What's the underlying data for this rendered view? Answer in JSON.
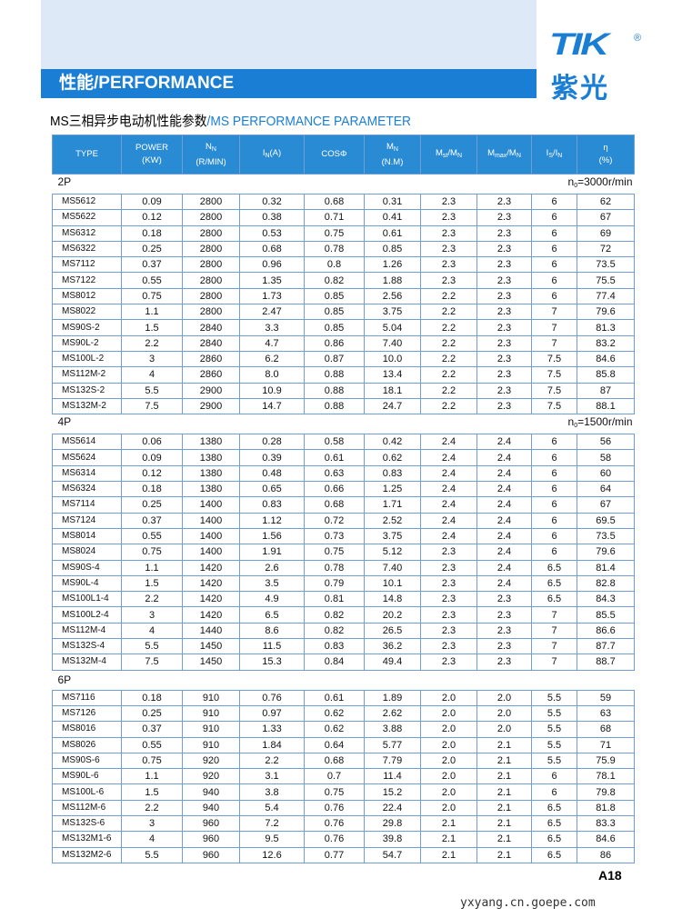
{
  "top_bar": {
    "title": "性能/PERFORMANCE"
  },
  "logo": {
    "mark": "TIK",
    "reg": "®",
    "name": "紫光"
  },
  "subtitle": {
    "cn": "MS三相异步电动机性能参数",
    "en": "/MS PERFORMANCE PARAMETER"
  },
  "table": {
    "header": [
      {
        "top": [
          "TYPE"
        ]
      },
      {
        "top": [
          "POWER"
        ],
        "bottom": "(KW)"
      },
      {
        "top": [
          "N",
          {
            "sub": "N"
          }
        ],
        "bottom": "(R/MIN)"
      },
      {
        "top": [
          "I",
          {
            "sub": "N"
          },
          "(A)"
        ]
      },
      {
        "top": [
          "COSΦ"
        ]
      },
      {
        "top": [
          "M",
          {
            "sub": "N"
          }
        ],
        "bottom": "(N.M)"
      },
      {
        "top": [
          "M",
          {
            "sub": "st"
          },
          "/M",
          {
            "sub": "N"
          }
        ]
      },
      {
        "top": [
          "M",
          {
            "sub": "max"
          },
          "/M",
          {
            "sub": "N"
          }
        ]
      },
      {
        "top": [
          "I",
          {
            "sub": "S"
          },
          "/I",
          {
            "sub": "N"
          }
        ]
      },
      {
        "top": [
          "η"
        ],
        "bottom": "(%)"
      }
    ],
    "sections": [
      {
        "label": "2P",
        "speed": [
          "n",
          {
            "sub": "0"
          },
          "=3000r/min"
        ],
        "rows": [
          [
            "MS5612",
            "0.09",
            "2800",
            "0.32",
            "0.68",
            "0.31",
            "2.3",
            "2.3",
            "6",
            "62"
          ],
          [
            "MS5622",
            "0.12",
            "2800",
            "0.38",
            "0.71",
            "0.41",
            "2.3",
            "2.3",
            "6",
            "67"
          ],
          [
            "MS6312",
            "0.18",
            "2800",
            "0.53",
            "0.75",
            "0.61",
            "2.3",
            "2.3",
            "6",
            "69"
          ],
          [
            "MS6322",
            "0.25",
            "2800",
            "0.68",
            "0.78",
            "0.85",
            "2.3",
            "2.3",
            "6",
            "72"
          ],
          [
            "MS7112",
            "0.37",
            "2800",
            "0.96",
            "0.8",
            "1.26",
            "2.3",
            "2.3",
            "6",
            "73.5"
          ],
          [
            "MS7122",
            "0.55",
            "2800",
            "1.35",
            "0.82",
            "1.88",
            "2.3",
            "2.3",
            "6",
            "75.5"
          ],
          [
            "MS8012",
            "0.75",
            "2800",
            "1.73",
            "0.85",
            "2.56",
            "2.2",
            "2.3",
            "6",
            "77.4"
          ],
          [
            "MS8022",
            "1.1",
            "2800",
            "2.47",
            "0.85",
            "3.75",
            "2.2",
            "2.3",
            "7",
            "79.6"
          ],
          [
            "MS90S-2",
            "1.5",
            "2840",
            "3.3",
            "0.85",
            "5.04",
            "2.2",
            "2.3",
            "7",
            "81.3"
          ],
          [
            "MS90L-2",
            "2.2",
            "2840",
            "4.7",
            "0.86",
            "7.40",
            "2.2",
            "2.3",
            "7",
            "83.2"
          ],
          [
            "MS100L-2",
            "3",
            "2860",
            "6.2",
            "0.87",
            "10.0",
            "2.2",
            "2.3",
            "7.5",
            "84.6"
          ],
          [
            "MS112M-2",
            "4",
            "2860",
            "8.0",
            "0.88",
            "13.4",
            "2.2",
            "2.3",
            "7.5",
            "85.8"
          ],
          [
            "MS132S-2",
            "5.5",
            "2900",
            "10.9",
            "0.88",
            "18.1",
            "2.2",
            "2.3",
            "7.5",
            "87"
          ],
          [
            "MS132M-2",
            "7.5",
            "2900",
            "14.7",
            "0.88",
            "24.7",
            "2.2",
            "2.3",
            "7.5",
            "88.1"
          ]
        ]
      },
      {
        "label": "4P",
        "speed": [
          "n",
          {
            "sub": "0"
          },
          "=1500r/min"
        ],
        "rows": [
          [
            "MS5614",
            "0.06",
            "1380",
            "0.28",
            "0.58",
            "0.42",
            "2.4",
            "2.4",
            "6",
            "56"
          ],
          [
            "MS5624",
            "0.09",
            "1380",
            "0.39",
            "0.61",
            "0.62",
            "2.4",
            "2.4",
            "6",
            "58"
          ],
          [
            "MS6314",
            "0.12",
            "1380",
            "0.48",
            "0.63",
            "0.83",
            "2.4",
            "2.4",
            "6",
            "60"
          ],
          [
            "MS6324",
            "0.18",
            "1380",
            "0.65",
            "0.66",
            "1.25",
            "2.4",
            "2.4",
            "6",
            "64"
          ],
          [
            "MS7114",
            "0.25",
            "1400",
            "0.83",
            "0.68",
            "1.71",
            "2.4",
            "2.4",
            "6",
            "67"
          ],
          [
            "MS7124",
            "0.37",
            "1400",
            "1.12",
            "0.72",
            "2.52",
            "2.4",
            "2.4",
            "6",
            "69.5"
          ],
          [
            "MS8014",
            "0.55",
            "1400",
            "1.56",
            "0.73",
            "3.75",
            "2.4",
            "2.4",
            "6",
            "73.5"
          ],
          [
            "MS8024",
            "0.75",
            "1400",
            "1.91",
            "0.75",
            "5.12",
            "2.3",
            "2.4",
            "6",
            "79.6"
          ],
          [
            "MS90S-4",
            "1.1",
            "1420",
            "2.6",
            "0.78",
            "7.40",
            "2.3",
            "2.4",
            "6.5",
            "81.4"
          ],
          [
            "MS90L-4",
            "1.5",
            "1420",
            "3.5",
            "0.79",
            "10.1",
            "2.3",
            "2.4",
            "6.5",
            "82.8"
          ],
          [
            "MS100L1-4",
            "2.2",
            "1420",
            "4.9",
            "0.81",
            "14.8",
            "2.3",
            "2.3",
            "6.5",
            "84.3"
          ],
          [
            "MS100L2-4",
            "3",
            "1420",
            "6.5",
            "0.82",
            "20.2",
            "2.3",
            "2.3",
            "7",
            "85.5"
          ],
          [
            "MS112M-4",
            "4",
            "1440",
            "8.6",
            "0.82",
            "26.5",
            "2.3",
            "2.3",
            "7",
            "86.6"
          ],
          [
            "MS132S-4",
            "5.5",
            "1450",
            "11.5",
            "0.83",
            "36.2",
            "2.3",
            "2.3",
            "7",
            "87.7"
          ],
          [
            "MS132M-4",
            "7.5",
            "1450",
            "15.3",
            "0.84",
            "49.4",
            "2.3",
            "2.3",
            "7",
            "88.7"
          ]
        ]
      },
      {
        "label": "6P",
        "rows": [
          [
            "MS7116",
            "0.18",
            "910",
            "0.76",
            "0.61",
            "1.89",
            "2.0",
            "2.0",
            "5.5",
            "59"
          ],
          [
            "MS7126",
            "0.25",
            "910",
            "0.97",
            "0.62",
            "2.62",
            "2.0",
            "2.0",
            "5.5",
            "63"
          ],
          [
            "MS8016",
            "0.37",
            "910",
            "1.33",
            "0.62",
            "3.88",
            "2.0",
            "2.0",
            "5.5",
            "68"
          ],
          [
            "MS8026",
            "0.55",
            "910",
            "1.84",
            "0.64",
            "5.77",
            "2.0",
            "2.1",
            "5.5",
            "71"
          ],
          [
            "MS90S-6",
            "0.75",
            "920",
            "2.2",
            "0.68",
            "7.79",
            "2.0",
            "2.1",
            "5.5",
            "75.9"
          ],
          [
            "MS90L-6",
            "1.1",
            "920",
            "3.1",
            "0.7",
            "11.4",
            "2.0",
            "2.1",
            "6",
            "78.1"
          ],
          [
            "MS100L-6",
            "1.5",
            "940",
            "3.8",
            "0.75",
            "15.2",
            "2.0",
            "2.1",
            "6",
            "79.8"
          ],
          [
            "MS112M-6",
            "2.2",
            "940",
            "5.4",
            "0.76",
            "22.4",
            "2.0",
            "2.1",
            "6.5",
            "81.8"
          ],
          [
            "MS132S-6",
            "3",
            "960",
            "7.2",
            "0.76",
            "29.8",
            "2.1",
            "2.1",
            "6.5",
            "83.3"
          ],
          [
            "MS132M1-6",
            "4",
            "960",
            "9.5",
            "0.76",
            "39.8",
            "2.1",
            "2.1",
            "6.5",
            "84.6"
          ],
          [
            "MS132M2-6",
            "5.5",
            "960",
            "12.6",
            "0.77",
            "54.7",
            "2.1",
            "2.1",
            "6.5",
            "86"
          ]
        ]
      }
    ]
  },
  "page_number": "A18",
  "footer": "yxyang.cn.goepe.com"
}
